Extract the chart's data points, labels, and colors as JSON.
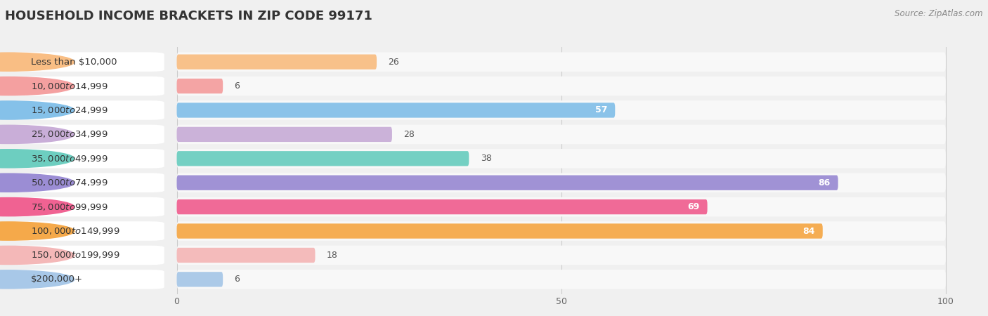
{
  "title": "Household Income Brackets in Zip Code 99171",
  "title_display": "HOUSEHOLD INCOME BRACKETS IN ZIP CODE 99171",
  "source": "Source: ZipAtlas.com",
  "categories": [
    "Less than $10,000",
    "$10,000 to $14,999",
    "$15,000 to $24,999",
    "$25,000 to $34,999",
    "$35,000 to $49,999",
    "$50,000 to $74,999",
    "$75,000 to $99,999",
    "$100,000 to $149,999",
    "$150,000 to $199,999",
    "$200,000+"
  ],
  "values": [
    26,
    6,
    57,
    28,
    38,
    86,
    69,
    84,
    18,
    6
  ],
  "bar_colors": [
    "#F9BE84",
    "#F4A0A0",
    "#85C1E9",
    "#C9AED8",
    "#6DCEC0",
    "#9B8DD4",
    "#F06292",
    "#F5A94A",
    "#F4B8B8",
    "#A8C8E8"
  ],
  "bg_color": "#f0f0f0",
  "row_bg_color": "#f8f8f8",
  "bar_bg_color": "#e8e8e8",
  "xlim_data": [
    0,
    100
  ],
  "xticks": [
    0,
    50,
    100
  ],
  "title_fontsize": 13,
  "label_fontsize": 9.5,
  "value_fontsize": 9,
  "source_fontsize": 8.5,
  "value_threshold": 50
}
